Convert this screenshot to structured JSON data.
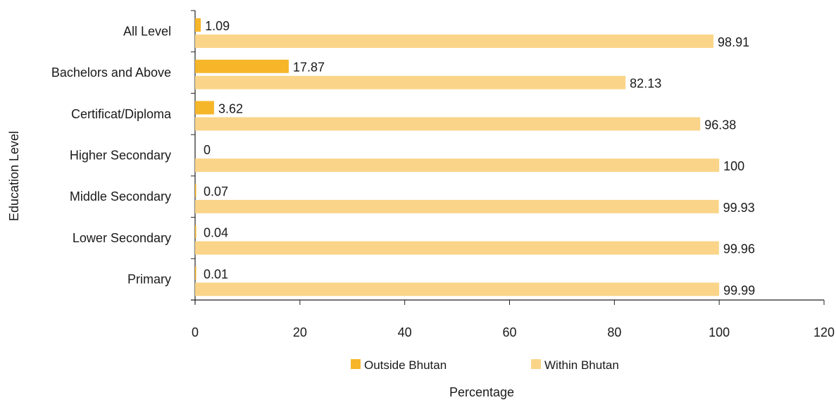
{
  "chart_data": {
    "type": "bar",
    "orientation": "horizontal",
    "categories": [
      "All Level",
      "Bachelors and Above",
      "Certificat/Diploma",
      "Higher Secondary",
      "Middle Secondary",
      "Lower Secondary",
      "Primary"
    ],
    "series": [
      {
        "name": "Outside Bhutan",
        "color": "#f6b62a",
        "values": [
          1.09,
          17.87,
          3.62,
          0,
          0.07,
          0.04,
          0.01
        ],
        "labels": [
          "1.09",
          "17.87",
          "3.62",
          "0",
          "0.07",
          "0.04",
          "0.01"
        ]
      },
      {
        "name": "Within Bhutan",
        "color": "#fad589",
        "values": [
          98.91,
          82.13,
          96.38,
          100,
          99.93,
          99.96,
          99.99
        ],
        "labels": [
          "98.91",
          "82.13",
          "96.38",
          "100",
          "99.93",
          "99.96",
          "99.99"
        ]
      }
    ],
    "xlabel": "Percentage",
    "ylabel": "Education Level",
    "xlim": [
      0,
      120
    ],
    "xticks": [
      "0",
      "20",
      "40",
      "60",
      "80",
      "100",
      "120"
    ],
    "grid": false,
    "legend_position": "bottom"
  }
}
